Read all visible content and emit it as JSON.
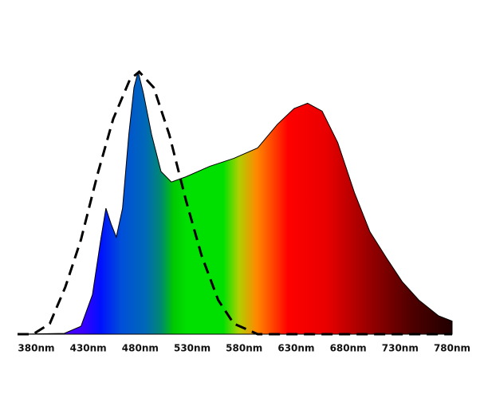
{
  "chart_data": {
    "type": "area",
    "xlim": [
      362,
      780
    ],
    "ylim": [
      0,
      100
    ],
    "xticks": [
      {
        "value": 380,
        "label": "380nm"
      },
      {
        "value": 430,
        "label": "430nm"
      },
      {
        "value": 480,
        "label": "480nm"
      },
      {
        "value": 530,
        "label": "530nm"
      },
      {
        "value": 580,
        "label": "580nm"
      },
      {
        "value": 630,
        "label": "630nm"
      },
      {
        "value": 680,
        "label": "680nm"
      },
      {
        "value": 730,
        "label": "730nm"
      },
      {
        "value": 780,
        "label": "780nm"
      }
    ],
    "gradient": [
      {
        "x": 362,
        "color": "#6a00ff"
      },
      {
        "x": 425,
        "color": "#3a00ff"
      },
      {
        "x": 442,
        "color": "#0010ff"
      },
      {
        "x": 462,
        "color": "#0050d8"
      },
      {
        "x": 485,
        "color": "#0068b8"
      },
      {
        "x": 500,
        "color": "#008a70"
      },
      {
        "x": 512,
        "color": "#00c800"
      },
      {
        "x": 525,
        "color": "#00e000"
      },
      {
        "x": 560,
        "color": "#00e000"
      },
      {
        "x": 575,
        "color": "#b0d000"
      },
      {
        "x": 592,
        "color": "#ff8800"
      },
      {
        "x": 612,
        "color": "#ff3000"
      },
      {
        "x": 622,
        "color": "#ff0000"
      },
      {
        "x": 660,
        "color": "#e80000"
      },
      {
        "x": 700,
        "color": "#980000"
      },
      {
        "x": 740,
        "color": "#500000"
      },
      {
        "x": 780,
        "color": "#200000"
      }
    ],
    "series": [
      {
        "style": "filled",
        "color": "#000000",
        "x": [
          362,
          407,
          423,
          434,
          442,
          447,
          452,
          457,
          463,
          469,
          474,
          478,
          483,
          491,
          500,
          510,
          524,
          547,
          570,
          593,
          612,
          628,
          641,
          655,
          670,
          686,
          701,
          717,
          732,
          748,
          767,
          780
        ],
        "values": [
          0,
          0.3,
          3,
          15,
          36,
          48,
          42,
          37,
          48,
          76,
          94,
          100,
          92,
          76,
          62,
          58,
          60,
          64,
          67,
          71,
          80,
          86,
          88,
          85,
          73,
          54,
          39,
          29,
          20,
          13,
          7,
          5
        ]
      },
      {
        "style": "dashed",
        "color": "#000000",
        "x": [
          362,
          377,
          393,
          408,
          423,
          439,
          454,
          470,
          479,
          493,
          508,
          524,
          539,
          555,
          570,
          593,
          780
        ],
        "values": [
          0,
          0,
          4,
          18,
          36,
          61,
          82,
          97,
          100,
          94,
          76,
          51,
          30,
          13,
          4,
          0,
          0
        ]
      }
    ]
  }
}
